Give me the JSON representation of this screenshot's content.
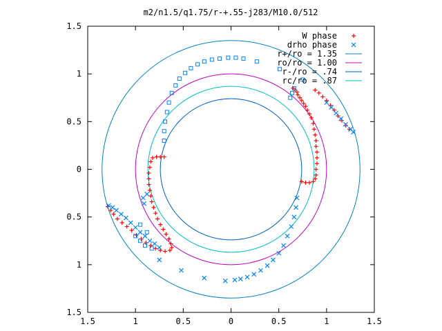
{
  "chart_data": {
    "type": "scatter",
    "title": "m2/n1.5/q1.75/r-+.55-j283/M10.0/512",
    "xlim": [
      -1.5,
      1.5
    ],
    "ylim": [
      -1.5,
      1.5
    ],
    "xticks": [
      -1.5,
      -1,
      -0.5,
      0,
      0.5,
      1,
      1.5
    ],
    "yticks": [
      -1.5,
      -1,
      -0.5,
      0,
      0.5,
      1,
      1.5
    ],
    "xtick_labels": [
      "1.5",
      "1",
      "0.5",
      "0",
      "0.5",
      "1",
      "1.5"
    ],
    "ytick_labels": [
      "1.5",
      "1",
      "0.5",
      "0",
      "0.5",
      "1",
      "1.5"
    ],
    "grid": false,
    "legend_position": "top-right",
    "legend": [
      {
        "label": "W phase",
        "color": "#ff0000",
        "marker": "plus"
      },
      {
        "label": "drho phase",
        "color": "#0080ff",
        "marker": "cross"
      },
      {
        "label": "r+/ro = 1.35",
        "color": "#0080c0",
        "marker": "line"
      },
      {
        "label": "ro/ro = 1.00",
        "color": "#c000c0",
        "marker": "line"
      },
      {
        "label": "r-/ro = .74",
        "color": "#0060c0",
        "marker": "line"
      },
      {
        "label": "rc/ro = .87",
        "color": "#00c0c0",
        "marker": "line"
      }
    ],
    "circles": [
      {
        "r": 1.35,
        "color": "#0080c0"
      },
      {
        "r": 1.0,
        "color": "#c000c0"
      },
      {
        "r": 0.74,
        "color": "#0060c0"
      },
      {
        "r": 0.87,
        "color": "#00c0c0"
      }
    ],
    "series": [
      {
        "name": "W phase",
        "color": "#ff0000",
        "marker": "plus",
        "points": [
          [
            0.65,
            0.85
          ],
          [
            0.67,
            0.83
          ],
          [
            0.69,
            0.81
          ],
          [
            0.7,
            0.78
          ],
          [
            0.72,
            0.75
          ],
          [
            0.74,
            0.72
          ],
          [
            0.76,
            0.69
          ],
          [
            0.78,
            0.66
          ],
          [
            0.8,
            0.62
          ],
          [
            0.82,
            0.58
          ],
          [
            0.84,
            0.54
          ],
          [
            0.86,
            0.48
          ],
          [
            0.87,
            0.42
          ],
          [
            0.88,
            0.36
          ],
          [
            0.89,
            0.3
          ],
          [
            0.89,
            0.24
          ],
          [
            0.9,
            0.18
          ],
          [
            0.9,
            0.12
          ],
          [
            0.9,
            0.06
          ],
          [
            0.89,
            0.0
          ],
          [
            0.89,
            -0.06
          ],
          [
            0.88,
            -0.1
          ],
          [
            0.86,
            -0.13
          ],
          [
            0.82,
            -0.14
          ],
          [
            0.78,
            -0.14
          ],
          [
            0.74,
            -0.13
          ],
          [
            0.88,
            0.83
          ],
          [
            0.92,
            0.8
          ],
          [
            0.96,
            0.76
          ],
          [
            1.0,
            0.72
          ],
          [
            1.04,
            0.67
          ],
          [
            1.08,
            0.62
          ],
          [
            1.12,
            0.56
          ],
          [
            1.16,
            0.51
          ],
          [
            1.2,
            0.46
          ],
          [
            1.24,
            0.42
          ],
          [
            -0.7,
            0.13
          ],
          [
            -0.74,
            0.13
          ],
          [
            -0.78,
            0.13
          ],
          [
            -0.82,
            0.12
          ],
          [
            -0.84,
            0.08
          ],
          [
            -0.85,
            0.02
          ],
          [
            -0.86,
            -0.04
          ],
          [
            -0.86,
            -0.1
          ],
          [
            -0.86,
            -0.16
          ],
          [
            -0.85,
            -0.22
          ],
          [
            -0.84,
            -0.28
          ],
          [
            -0.83,
            -0.34
          ],
          [
            -0.81,
            -0.4
          ],
          [
            -0.79,
            -0.46
          ],
          [
            -0.77,
            -0.52
          ],
          [
            -0.74,
            -0.58
          ],
          [
            -0.71,
            -0.63
          ],
          [
            -0.68,
            -0.68
          ],
          [
            -0.65,
            -0.73
          ],
          [
            -0.63,
            -0.78
          ],
          [
            -0.62,
            -0.82
          ],
          [
            -0.64,
            -0.85
          ],
          [
            -0.69,
            -0.86
          ],
          [
            -0.74,
            -0.85
          ],
          [
            -0.79,
            -0.83
          ],
          [
            -0.84,
            -0.8
          ],
          [
            -0.89,
            -0.77
          ],
          [
            -0.94,
            -0.73
          ],
          [
            -0.99,
            -0.69
          ],
          [
            -1.04,
            -0.64
          ],
          [
            -1.09,
            -0.6
          ],
          [
            -1.14,
            -0.56
          ],
          [
            -1.19,
            -0.52
          ],
          [
            -1.23,
            -0.47
          ],
          [
            -1.26,
            -0.43
          ],
          [
            -1.29,
            -0.39
          ]
        ]
      },
      {
        "name": "drho phase",
        "color": "#0080ff",
        "marker": "cross",
        "points": [
          [
            1.0,
            0.7
          ],
          [
            1.05,
            0.65
          ],
          [
            1.1,
            0.59
          ],
          [
            1.15,
            0.53
          ],
          [
            1.2,
            0.47
          ],
          [
            1.25,
            0.42
          ],
          [
            1.28,
            0.39
          ],
          [
            0.69,
            -0.3
          ],
          [
            0.68,
            -0.4
          ],
          [
            0.66,
            -0.5
          ],
          [
            0.63,
            -0.6
          ],
          [
            0.59,
            -0.7
          ],
          [
            0.55,
            -0.8
          ],
          [
            0.5,
            -0.88
          ],
          [
            0.44,
            -0.95
          ],
          [
            0.38,
            -1.01
          ],
          [
            0.31,
            -1.06
          ],
          [
            0.24,
            -1.1
          ],
          [
            0.17,
            -1.13
          ],
          [
            0.1,
            -1.15
          ],
          [
            0.04,
            -1.16
          ],
          [
            -0.06,
            -1.17
          ],
          [
            -0.28,
            -1.14
          ],
          [
            -0.52,
            -1.06
          ],
          [
            -0.75,
            -0.95
          ],
          [
            -1.28,
            -0.38
          ],
          [
            -1.24,
            -0.4
          ],
          [
            -1.2,
            -0.43
          ],
          [
            -1.15,
            -0.47
          ],
          [
            -1.1,
            -0.51
          ],
          [
            -1.05,
            -0.56
          ],
          [
            -1.0,
            -0.61
          ],
          [
            -0.95,
            -0.66
          ],
          [
            -0.9,
            -0.7
          ],
          [
            -0.85,
            -0.75
          ],
          [
            -0.8,
            -0.78
          ],
          [
            -0.75,
            -0.82
          ],
          [
            -0.91,
            -0.36
          ],
          [
            -0.92,
            -0.3
          ],
          [
            -0.88,
            -0.26
          ]
        ]
      },
      {
        "name": "drho phase",
        "color": "#0080ff",
        "marker": "square",
        "points": [
          [
            -0.7,
            0.3
          ],
          [
            -0.7,
            0.4
          ],
          [
            -0.69,
            0.5
          ],
          [
            -0.67,
            0.6
          ],
          [
            -0.65,
            0.7
          ],
          [
            -0.62,
            0.8
          ],
          [
            -0.58,
            0.88
          ],
          [
            -0.54,
            0.95
          ],
          [
            -0.48,
            1.01
          ],
          [
            -0.42,
            1.06
          ],
          [
            -0.35,
            1.1
          ],
          [
            -0.28,
            1.13
          ],
          [
            -0.2,
            1.15
          ],
          [
            -0.12,
            1.16
          ],
          [
            -0.03,
            1.17
          ],
          [
            0.05,
            1.17
          ],
          [
            0.13,
            1.16
          ],
          [
            0.27,
            1.13
          ],
          [
            0.51,
            1.05
          ],
          [
            0.75,
            0.94
          ],
          [
            0.66,
            0.85
          ],
          [
            0.64,
            0.8
          ],
          [
            0.62,
            0.75
          ],
          [
            -1.0,
            -0.7
          ],
          [
            -0.95,
            -0.75
          ],
          [
            -0.9,
            -0.8
          ],
          [
            -0.83,
            -0.83
          ],
          [
            -0.95,
            -0.58
          ],
          [
            -0.88,
            -0.66
          ]
        ]
      }
    ]
  }
}
